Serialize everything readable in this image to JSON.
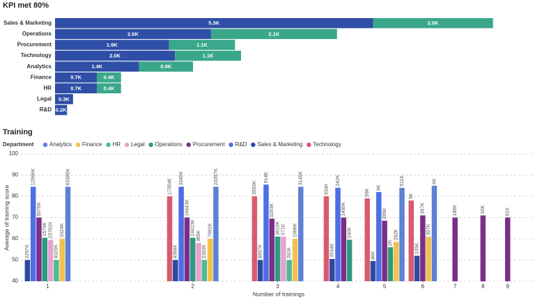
{
  "chart_data": [
    {
      "type": "hbar",
      "title": "KPI met 80%",
      "categories": [
        "Sales & Marketing",
        "Operations",
        "Procurement",
        "Technology",
        "Analytics",
        "Finance",
        "HR",
        "Legal",
        "R&D"
      ],
      "series": [
        {
          "color": "#2f4fa6",
          "values": [
            5300,
            2600,
            1900,
            2000,
            1400,
            700,
            700,
            300,
            200
          ],
          "value_labels": [
            "5.3K",
            "2.6K",
            "1.9K",
            "2.0K",
            "1.4K",
            "0.7K",
            "0.7K",
            "0.3K",
            "0.2K"
          ]
        },
        {
          "color": "#3aa78b",
          "values": [
            2000,
            2100,
            1100,
            1100,
            900,
            400,
            400,
            null,
            null
          ],
          "value_labels": [
            "2.0K",
            "2.1K",
            "1.1K",
            "1.1K",
            "0.9K",
            "0.4K",
            "0.4K",
            null,
            null
          ]
        }
      ],
      "xlim": [
        0,
        8000
      ]
    },
    {
      "type": "column",
      "title": "Training",
      "legend_title": "Department",
      "x_label": "Number of trainings",
      "y_label": "Average of training score",
      "x": [
        1,
        2,
        3,
        4,
        5,
        6,
        7,
        8,
        9
      ],
      "log_x": true,
      "xlim": [
        0.88,
        9.5
      ],
      "xticks": [
        1,
        2,
        3,
        4,
        5,
        6,
        7,
        8,
        9
      ],
      "ylim": [
        40,
        100
      ],
      "yticks": [
        40,
        50,
        60,
        70,
        80,
        90,
        100
      ],
      "grid": true,
      "series": [
        {
          "name": "Analytics",
          "color": "#5d82d4",
          "values": [
            84.5,
            84.5,
            84.5,
            null,
            84,
            85,
            null,
            null,
            null
          ],
          "bar_labels": [
            "63385K",
            "23357K",
            "3145K",
            null,
            "511K",
            "6K",
            null,
            null,
            null
          ]
        },
        {
          "name": "Finance",
          "color": "#f2c14e",
          "values": [
            60,
            60,
            60,
            null,
            58.5,
            61,
            null,
            null,
            null
          ],
          "bar_labels": [
            "3324K",
            "7992K",
            "1986K",
            null,
            "282K",
            "357K",
            null,
            null,
            null
          ]
        },
        {
          "name": "HR",
          "color": "#4fb894",
          "values": [
            50,
            50,
            50,
            null,
            null,
            null,
            null,
            null,
            null
          ],
          "bar_labels": [
            "4029K",
            "2393K",
            "282K",
            null,
            null,
            null,
            null,
            null,
            null
          ]
        },
        {
          "name": "Legal",
          "color": "#e6a3cd",
          "values": [
            59.5,
            58,
            61,
            null,
            null,
            null,
            null,
            null,
            null
          ],
          "bar_labels": [
            "15762K",
            "365K",
            "571K",
            null,
            null,
            null,
            null,
            null,
            null
          ]
        },
        {
          "name": "Operations",
          "color": "#2e9a7c",
          "values": [
            60.5,
            60.5,
            61,
            59.5,
            56,
            null,
            null,
            null,
            null
          ],
          "bar_labels": [
            "1576K",
            "24423K",
            "3618K",
            "240K",
            "2K",
            null,
            null,
            null,
            null
          ]
        },
        {
          "name": "Procurement",
          "color": "#7a2e8a",
          "values": [
            70,
            70,
            69.5,
            70,
            68.5,
            71,
            70,
            71,
            70
          ],
          "bar_labels": [
            "9076K",
            "16643K",
            "5293K",
            "1499K",
            "399K",
            "367K",
            "186K",
            "30K",
            "81K"
          ]
        },
        {
          "name": "R&D",
          "color": "#4d6ee6",
          "values": [
            84.5,
            84.5,
            85.5,
            84,
            82,
            null,
            null,
            null,
            null
          ],
          "bar_labels": [
            "12966K",
            "3345K",
            "914K",
            "242K",
            "6K",
            null,
            null,
            null,
            null
          ]
        },
        {
          "name": "Sales & Marketing",
          "color": "#2e4a9e",
          "values": [
            50,
            50,
            50,
            50.5,
            49.5,
            52,
            null,
            null,
            null
          ],
          "bar_labels": [
            "2297K",
            "4384K",
            "9897K",
            "3534K",
            "46K",
            "105K",
            null,
            null,
            null
          ]
        },
        {
          "name": "Technology",
          "color": "#d95b6e",
          "values": [
            null,
            80,
            80,
            80,
            79,
            78,
            null,
            null,
            null
          ],
          "bar_labels": [
            null,
            "17354K",
            "3593K",
            "934K",
            "99K",
            "5K",
            null,
            null,
            null
          ]
        }
      ]
    }
  ]
}
